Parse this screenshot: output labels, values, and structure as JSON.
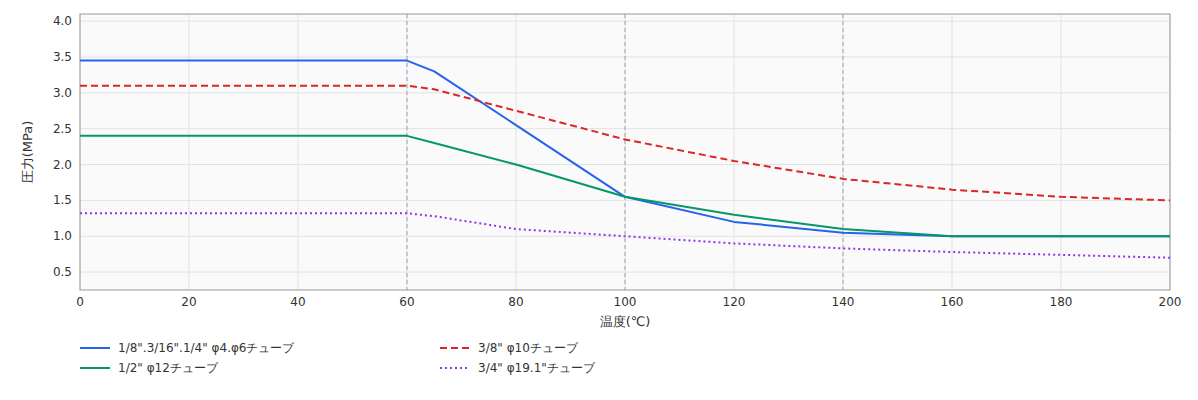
{
  "chart_data": {
    "type": "line",
    "xlabel": "温度(℃)",
    "ylabel": "圧力(MPa)",
    "xlim": [
      0,
      200
    ],
    "ylim": [
      0.25,
      4.1
    ],
    "xticks": [
      0,
      20,
      40,
      60,
      80,
      100,
      120,
      140,
      160,
      180,
      200
    ],
    "yticks": [
      0.5,
      {
        "value": 1.0,
        "label": "1.0"
      },
      1.5,
      {
        "value": 2.0,
        "label": "2.0"
      },
      2.5,
      {
        "value": 3.0,
        "label": "3.0"
      },
      3.5,
      {
        "value": 4.0,
        "label": "4.0"
      }
    ],
    "grid": true,
    "legend": "bottom",
    "x": [
      0,
      60,
      65,
      80,
      100,
      120,
      140,
      160,
      180,
      200
    ],
    "vlines": [
      60,
      100,
      140
    ],
    "series": [
      {
        "name": "1/8\".3/16\".1/4\" φ4.φ6チューブ",
        "line_style": "solid",
        "values": [
          3.45,
          3.45,
          3.3,
          2.55,
          1.55,
          1.2,
          1.05,
          1.0,
          1.0,
          1.0
        ]
      },
      {
        "name": "3/8\" φ10チューブ",
        "line_style": "dashed",
        "values": [
          3.1,
          3.1,
          3.05,
          2.75,
          2.35,
          2.05,
          1.8,
          1.65,
          1.55,
          1.5
        ]
      },
      {
        "name": "1/2\" φ12チューブ",
        "line_style": "solid",
        "values": [
          2.4,
          2.4,
          2.3,
          2.0,
          1.55,
          1.3,
          1.1,
          1.0,
          1.0,
          1.0
        ]
      },
      {
        "name": "3/4\" φ19.1\"チューブ",
        "line_style": "dotted",
        "values": [
          1.32,
          1.32,
          1.28,
          1.1,
          1.0,
          0.9,
          0.83,
          0.78,
          0.74,
          0.7
        ]
      }
    ]
  }
}
